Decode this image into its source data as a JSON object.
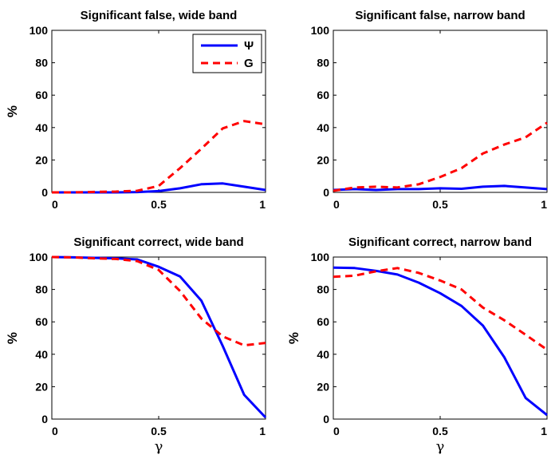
{
  "colors": {
    "psi": "#0000ff",
    "g": "#ff0000"
  },
  "legend": [
    {
      "label": "Ψ",
      "color": "#0000ff",
      "style": "solid"
    },
    {
      "label": "G",
      "color": "#ff0000",
      "style": "dashed"
    }
  ],
  "chart_data": [
    {
      "type": "line",
      "title": "Significant false, wide band",
      "xlabel": "",
      "ylabel": "%",
      "xlim": [
        0,
        1
      ],
      "ylim": [
        0,
        100
      ],
      "xticks": [
        "0",
        "0.5",
        "1"
      ],
      "yticks": [
        "0",
        "20",
        "40",
        "60",
        "80",
        "100"
      ],
      "x": [
        0,
        0.1,
        0.2,
        0.3,
        0.4,
        0.5,
        0.6,
        0.7,
        0.8,
        0.9,
        1.0
      ],
      "series": [
        {
          "name": "Ψ",
          "values": [
            0,
            0,
            0,
            0,
            0.2,
            0.8,
            2.5,
            5,
            5.5,
            3.5,
            1.5
          ]
        },
        {
          "name": "G",
          "values": [
            0,
            0,
            0.3,
            0.5,
            1,
            4,
            15,
            27,
            39.5,
            44,
            42
          ]
        }
      ],
      "legend": true
    },
    {
      "type": "line",
      "title": "Significant false, narrow band",
      "xlabel": "",
      "ylabel": "",
      "xlim": [
        0,
        1
      ],
      "ylim": [
        0,
        100
      ],
      "xticks": [
        "0",
        "0.5",
        "1"
      ],
      "yticks": [
        "0",
        "20",
        "40",
        "60",
        "80",
        "100"
      ],
      "x": [
        0,
        0.1,
        0.2,
        0.3,
        0.4,
        0.5,
        0.6,
        0.7,
        0.8,
        0.9,
        1.0
      ],
      "series": [
        {
          "name": "Ψ",
          "values": [
            1.5,
            2,
            1.5,
            2,
            2,
            2.5,
            2.2,
            3.5,
            4,
            3,
            2
          ]
        },
        {
          "name": "G",
          "values": [
            1,
            3,
            3.5,
            3,
            5,
            9.5,
            15,
            24,
            29.5,
            34,
            43
          ]
        }
      ],
      "legend": false
    },
    {
      "type": "line",
      "title": "Significant correct, wide band",
      "xlabel": "γ",
      "ylabel": "%",
      "xlim": [
        0,
        1
      ],
      "ylim": [
        0,
        100
      ],
      "xticks": [
        "0",
        "0.5",
        "1"
      ],
      "yticks": [
        "0",
        "20",
        "40",
        "60",
        "80",
        "100"
      ],
      "x": [
        0,
        0.1,
        0.2,
        0.3,
        0.4,
        0.5,
        0.6,
        0.7,
        0.8,
        0.9,
        1.0
      ],
      "series": [
        {
          "name": "Ψ",
          "values": [
            100,
            99.8,
            99.5,
            99.2,
            98.5,
            94,
            88,
            73,
            45,
            15,
            1
          ]
        },
        {
          "name": "G",
          "values": [
            100,
            99.8,
            99.2,
            98.8,
            97.5,
            92,
            79,
            62,
            51,
            45.5,
            47
          ]
        }
      ],
      "legend": false
    },
    {
      "type": "line",
      "title": "Significant correct, narrow band",
      "xlabel": "γ",
      "ylabel": "%",
      "xlim": [
        0,
        1
      ],
      "ylim": [
        0,
        100
      ],
      "xticks": [
        "0",
        "0.5",
        "1"
      ],
      "yticks": [
        "0",
        "20",
        "40",
        "60",
        "80",
        "100"
      ],
      "x": [
        0,
        0.1,
        0.2,
        0.3,
        0.4,
        0.5,
        0.6,
        0.7,
        0.8,
        0.9,
        1.0
      ],
      "series": [
        {
          "name": "Ψ",
          "values": [
            93.5,
            93.2,
            91.5,
            89.2,
            84.2,
            77.7,
            69.8,
            57.7,
            38.2,
            13,
            2.5
          ]
        },
        {
          "name": "G",
          "values": [
            87.8,
            88.5,
            91.2,
            93.2,
            90.2,
            85.5,
            80,
            68.8,
            61,
            52,
            42.8
          ]
        }
      ],
      "legend": false
    }
  ]
}
